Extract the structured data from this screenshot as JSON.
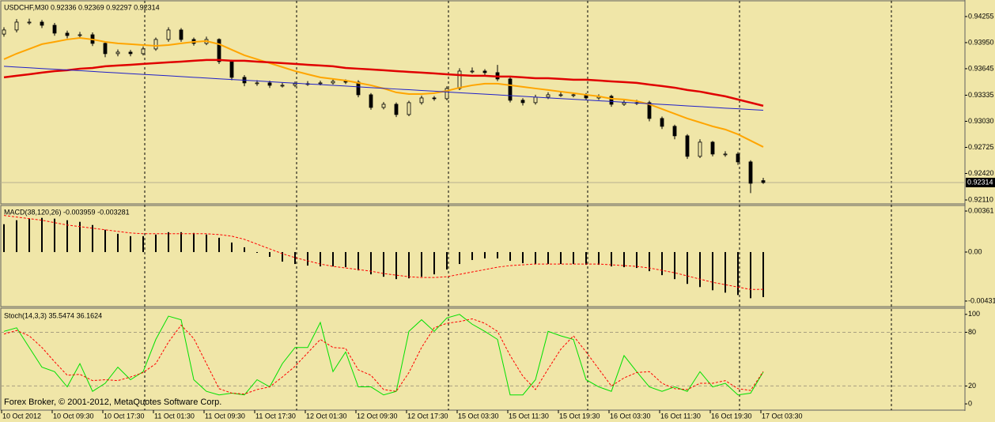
{
  "chart_data": [
    {
      "type": "candlestick",
      "title": "USDCHF,M30  0.92336 0.92369 0.92297 0.92314",
      "categories": [
        "10 Oct 2012",
        null,
        null,
        null,
        "10 Oct 09:30",
        null,
        null,
        null,
        "10 Oct 17:30",
        null,
        null,
        null,
        "11 Oct 01:30",
        null,
        null,
        null,
        "11 Oct 09:30",
        null,
        null,
        null,
        "11 Oct 17:30",
        null,
        null,
        null,
        "12 Oct 01:30",
        null,
        null,
        null,
        "12 Oct 09:30",
        null,
        null,
        null,
        "12 Oct 17:30",
        null,
        null,
        null,
        "15 Oct 03:30",
        null,
        null,
        null,
        "15 Oct 11:30",
        null,
        null,
        null,
        "15 Oct 19:30",
        null,
        null,
        null,
        "16 Oct 03:30",
        null,
        null,
        null,
        "16 Oct 11:30",
        null,
        null,
        null,
        "16 Oct 19:30",
        null,
        null,
        null,
        "17 Oct 03:30"
      ],
      "open": [
        0.9405,
        0.94098,
        0.9419,
        0.9419,
        0.94153,
        0.94061,
        0.94033,
        0.94042,
        0.93941,
        0.93821,
        0.93839,
        0.93821,
        0.93876,
        0.93987,
        0.94098,
        0.93987,
        0.93941,
        0.93987,
        0.93728,
        0.93544,
        0.93479,
        0.93479,
        0.93451,
        0.93451,
        0.9347,
        0.9347,
        0.93479,
        0.93497,
        0.93488,
        0.9334,
        0.93192,
        0.93229,
        0.93109,
        0.93248,
        0.93303,
        0.93294,
        0.93414,
        0.93617,
        0.93617,
        0.93599,
        0.93525,
        0.93276,
        0.93248,
        0.93313,
        0.9334,
        0.9334,
        0.9334,
        0.93303,
        0.93322,
        0.93229,
        0.93248,
        0.93248,
        0.93063,
        0.92971,
        0.9286,
        0.9262,
        0.92786,
        0.92647,
        0.92647,
        0.92555,
        0.92336
      ],
      "high": [
        0.9413,
        0.94225,
        0.9423,
        0.94215,
        0.9418,
        0.9409,
        0.94075,
        0.9407,
        0.9396,
        0.9387,
        0.93865,
        0.93905,
        0.9401,
        0.9413,
        0.9412,
        0.9401,
        0.9402,
        0.94,
        0.9375,
        0.9357,
        0.9351,
        0.93505,
        0.9348,
        0.93495,
        0.935,
        0.93505,
        0.93525,
        0.9352,
        0.9351,
        0.9336,
        0.93255,
        0.9325,
        0.9327,
        0.9333,
        0.93325,
        0.9344,
        0.9365,
        0.9366,
        0.9364,
        0.9369,
        0.93545,
        0.933,
        0.9334,
        0.9337,
        0.93375,
        0.93365,
        0.9336,
        0.93345,
        0.9334,
        0.93275,
        0.9328,
        0.9327,
        0.93085,
        0.9299,
        0.9288,
        0.9282,
        0.928,
        0.9268,
        0.9267,
        0.92575,
        0.92369
      ],
      "low": [
        0.9402,
        0.9407,
        0.9416,
        0.9412,
        0.9403,
        0.94,
        0.94005,
        0.9391,
        0.9378,
        0.9379,
        0.9379,
        0.938,
        0.93855,
        0.9396,
        0.9396,
        0.93915,
        0.9392,
        0.937,
        0.9351,
        0.9344,
        0.93445,
        0.9342,
        0.93425,
        0.9343,
        0.93445,
        0.9345,
        0.9346,
        0.93465,
        0.9331,
        0.93165,
        0.9317,
        0.9308,
        0.9309,
        0.93225,
        0.9327,
        0.93275,
        0.93395,
        0.9359,
        0.9357,
        0.935,
        0.9325,
        0.93215,
        0.93225,
        0.9329,
        0.93315,
        0.9331,
        0.9328,
        0.9328,
        0.932,
        0.9321,
        0.9322,
        0.9303,
        0.9294,
        0.9282,
        0.9259,
        0.926,
        0.9262,
        0.92615,
        0.9252,
        0.9219,
        0.92297
      ],
      "close": [
        0.94098,
        0.9419,
        0.9419,
        0.94153,
        0.94061,
        0.94033,
        0.94042,
        0.93941,
        0.93821,
        0.93839,
        0.93821,
        0.93876,
        0.93987,
        0.94098,
        0.93987,
        0.93941,
        0.93987,
        0.93728,
        0.93544,
        0.93479,
        0.93479,
        0.93451,
        0.93451,
        0.9347,
        0.9347,
        0.93479,
        0.93497,
        0.93488,
        0.9334,
        0.93192,
        0.93229,
        0.93109,
        0.93248,
        0.93303,
        0.93294,
        0.93414,
        0.93617,
        0.93617,
        0.93599,
        0.93525,
        0.93276,
        0.93248,
        0.93313,
        0.9334,
        0.9334,
        0.9334,
        0.93303,
        0.93322,
        0.93229,
        0.93248,
        0.93248,
        0.93063,
        0.92971,
        0.9286,
        0.9262,
        0.92786,
        0.92647,
        0.92647,
        0.92555,
        0.92305,
        0.92314
      ],
      "up_color": "#f0e6a8",
      "down_color": "#000000",
      "series": [
        {
          "color": "#ffa500",
          "width": 2,
          "values": [
            0.93756,
            0.93821,
            0.93876,
            0.93932,
            0.93959,
            0.93987,
            0.94005,
            0.93987,
            0.93959,
            0.93941,
            0.93932,
            0.93922,
            0.93913,
            0.93922,
            0.93941,
            0.93959,
            0.93968,
            0.93932,
            0.93867,
            0.93802,
            0.93756,
            0.9371,
            0.93664,
            0.93617,
            0.9358,
            0.93544,
            0.93525,
            0.93507,
            0.93479,
            0.93451,
            0.93414,
            0.93368,
            0.93349,
            0.93349,
            0.93359,
            0.93386,
            0.93423,
            0.93451,
            0.9347,
            0.9347,
            0.93451,
            0.93433,
            0.93414,
            0.93396,
            0.93377,
            0.93359,
            0.9334,
            0.93322,
            0.93294,
            0.93285,
            0.93266,
            0.93229,
            0.93174,
            0.93118,
            0.93063,
            0.93017,
            0.92971,
            0.92934,
            0.92878,
            0.92804,
            0.9273
          ]
        },
        {
          "color": "#e00000",
          "width": 2.5,
          "values": [
            0.93544,
            0.93562,
            0.9358,
            0.93599,
            0.93617,
            0.93627,
            0.93645,
            0.93654,
            0.93673,
            0.93682,
            0.93691,
            0.93701,
            0.9371,
            0.93719,
            0.93728,
            0.93738,
            0.93747,
            0.93747,
            0.93738,
            0.93738,
            0.93728,
            0.93719,
            0.9371,
            0.93701,
            0.93691,
            0.93682,
            0.93673,
            0.93654,
            0.93645,
            0.93636,
            0.93627,
            0.93617,
            0.93608,
            0.93599,
            0.9359,
            0.9358,
            0.93571,
            0.93562,
            0.93562,
            0.93553,
            0.93553,
            0.93544,
            0.93534,
            0.93534,
            0.93525,
            0.93516,
            0.93516,
            0.93507,
            0.93497,
            0.93488,
            0.93479,
            0.9346,
            0.93442,
            0.93423,
            0.93396,
            0.93377,
            0.93349,
            0.93322,
            0.93285,
            0.93248,
            0.93211
          ]
        },
        {
          "color": "#2020c8",
          "width": 1,
          "values": [
            0.93673,
            0.93664,
            0.93656,
            0.93647,
            0.93639,
            0.9363,
            0.93622,
            0.93613,
            0.93604,
            0.93596,
            0.93587,
            0.93579,
            0.9357,
            0.93562,
            0.93553,
            0.93544,
            0.93536,
            0.93527,
            0.93519,
            0.9351,
            0.93502,
            0.93493,
            0.93484,
            0.93476,
            0.93467,
            0.93459,
            0.9345,
            0.93442,
            0.93433,
            0.93424,
            0.93416,
            0.93407,
            0.93399,
            0.9339,
            0.93382,
            0.93373,
            0.93364,
            0.93356,
            0.93347,
            0.93339,
            0.9333,
            0.93322,
            0.93313,
            0.93304,
            0.93296,
            0.93287,
            0.93279,
            0.9327,
            0.93262,
            0.93253,
            0.93244,
            0.93236,
            0.93227,
            0.93219,
            0.9321,
            0.93202,
            0.93193,
            0.93184,
            0.93176,
            0.93167,
            0.93159
          ]
        }
      ],
      "ylim": [
        0.92064,
        0.9443
      ],
      "yticks": [
        0.94255,
        {
          "value": 0.9395,
          "label": "0.93950"
        },
        0.93645,
        0.93335,
        {
          "value": 0.9303,
          "label": "0.93030"
        },
        0.92725,
        {
          "value": 0.9242,
          "label": "0.92420"
        },
        {
          "value": 0.9211,
          "label": "0.92110"
        }
      ],
      "price_label": 0.92314
    },
    {
      "type": "macd",
      "title": "MACD(38,120,26) -0.003959 -0.003281",
      "color": "#000000",
      "values": [
        0.00245,
        0.0028,
        0.00294,
        0.00301,
        0.00294,
        0.0028,
        0.00266,
        0.00238,
        0.00196,
        0.00161,
        0.0014,
        0.0014,
        0.00154,
        0.00175,
        0.00175,
        0.00168,
        0.00154,
        0.00126,
        0.00084,
        0.00042,
        -7e-05,
        -0.00042,
        -0.00084,
        -0.00105,
        -0.00119,
        -0.00126,
        -0.00126,
        -0.00133,
        -0.00161,
        -0.00196,
        -0.00217,
        -0.00238,
        -0.00231,
        -0.00217,
        -0.00196,
        -0.00154,
        -0.00105,
        -0.0007,
        -0.00056,
        -0.00056,
        -0.00077,
        -0.00098,
        -0.00105,
        -0.00105,
        -0.00105,
        -0.00105,
        -0.00112,
        -0.00112,
        -0.00126,
        -0.00133,
        -0.0014,
        -0.00168,
        -0.00203,
        -0.00238,
        -0.0028,
        -0.00308,
        -0.00336,
        -0.00357,
        -0.00378,
        -0.00406,
        -0.00396
      ],
      "series": [
        {
          "color": "#ff0000",
          "dashed": true,
          "values": [
            0.00322,
            0.00308,
            0.00294,
            0.0028,
            0.00259,
            0.00238,
            0.00224,
            0.0021,
            0.00196,
            0.00182,
            0.00168,
            0.00161,
            0.00161,
            0.00161,
            0.00161,
            0.00161,
            0.00161,
            0.00154,
            0.0014,
            0.00112,
            0.0007,
            0.00028,
            -0.00014,
            -0.00049,
            -0.00077,
            -0.00105,
            -0.00126,
            -0.0014,
            -0.00154,
            -0.00168,
            -0.00189,
            -0.00203,
            -0.00217,
            -0.00224,
            -0.00224,
            -0.00217,
            -0.00196,
            -0.00175,
            -0.00154,
            -0.00133,
            -0.00119,
            -0.00112,
            -0.00105,
            -0.00105,
            -0.00105,
            -0.00105,
            -0.00105,
            -0.00105,
            -0.00112,
            -0.00119,
            -0.00126,
            -0.0014,
            -0.00161,
            -0.00182,
            -0.0021,
            -0.00238,
            -0.00266,
            -0.00287,
            -0.00308,
            -0.00329,
            -0.00328
          ]
        }
      ],
      "ylim": [
        -0.0048,
        0.00403
      ],
      "yticks": [
        0.00361,
        {
          "value": 0,
          "label": "0.00"
        },
        -0.00431
      ]
    },
    {
      "type": "line",
      "title": "Stoch(14,3,3) 35.5474 36.1624",
      "annotation": "Forex Broker, © 2001-2012, MetaQuotes Software Corp.",
      "series": [
        {
          "color": "#00e000",
          "dashed": false,
          "values": [
            81,
            85,
            63,
            41,
            36,
            19,
            45,
            14,
            23,
            41,
            27,
            36,
            72,
            98,
            94,
            27,
            14,
            10,
            12,
            10,
            27,
            19,
            45,
            63,
            63,
            91,
            36,
            58,
            19,
            19,
            10,
            14,
            81,
            94,
            81,
            96,
            100,
            89,
            81,
            72,
            10,
            10,
            27,
            81,
            76,
            72,
            27,
            19,
            14,
            54,
            36,
            19,
            14,
            19,
            14,
            36,
            19,
            23,
            10,
            12,
            35.5474
          ]
        },
        {
          "color": "#ff0000",
          "dashed": true,
          "values": [
            78,
            82,
            76,
            63,
            47,
            32,
            33,
            26,
            27,
            26,
            30,
            35,
            45,
            69,
            88,
            73,
            45,
            17,
            12,
            11,
            16,
            19,
            30,
            42,
            57,
            72,
            63,
            62,
            38,
            32,
            16,
            14,
            35,
            63,
            85,
            90,
            92,
            95,
            90,
            81,
            54,
            31,
            16,
            39,
            61,
            76,
            58,
            39,
            20,
            29,
            35,
            36,
            23,
            17,
            16,
            23,
            23,
            26,
            17,
            15,
            36.1624
          ]
        }
      ],
      "levels": [
        20,
        80
      ],
      "ylim": [
        -7,
        106
      ],
      "yticks": [
        0,
        20,
        80,
        100
      ]
    }
  ]
}
